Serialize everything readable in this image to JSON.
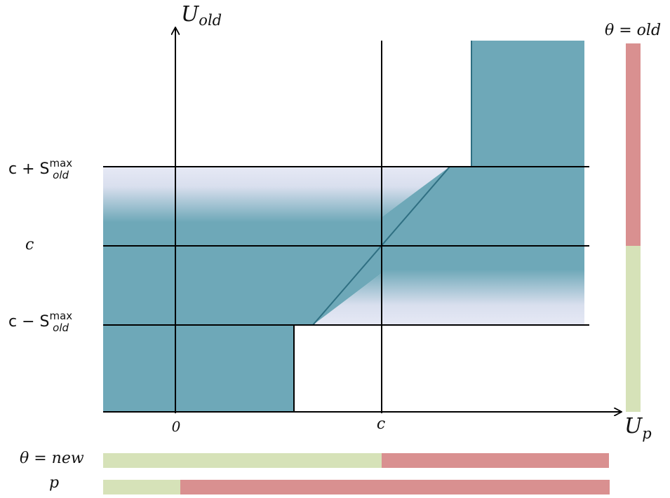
{
  "axes": {
    "y_label_main": "U",
    "y_label_sub": "old",
    "x_label_main": "U",
    "x_label_sub": "p"
  },
  "x_ticks": {
    "zero": "0",
    "c": "c"
  },
  "y_ticks": {
    "upper": {
      "lhs": "c + S",
      "sup": "max",
      "sub": "old"
    },
    "middle": "c",
    "lower": {
      "lhs": "c − S",
      "sup": "max",
      "sub": "old"
    }
  },
  "bars": {
    "theta_old_label": "θ = old",
    "theta_new_label": "θ = new",
    "p_label": "p"
  },
  "colors": {
    "region_fill": "#6ea8b8",
    "region_edge": "#2f6f82",
    "fade_light": "#e6e9f5",
    "bar_green": "#d6e2b8",
    "bar_red": "#d99090",
    "axis": "#000000"
  }
}
